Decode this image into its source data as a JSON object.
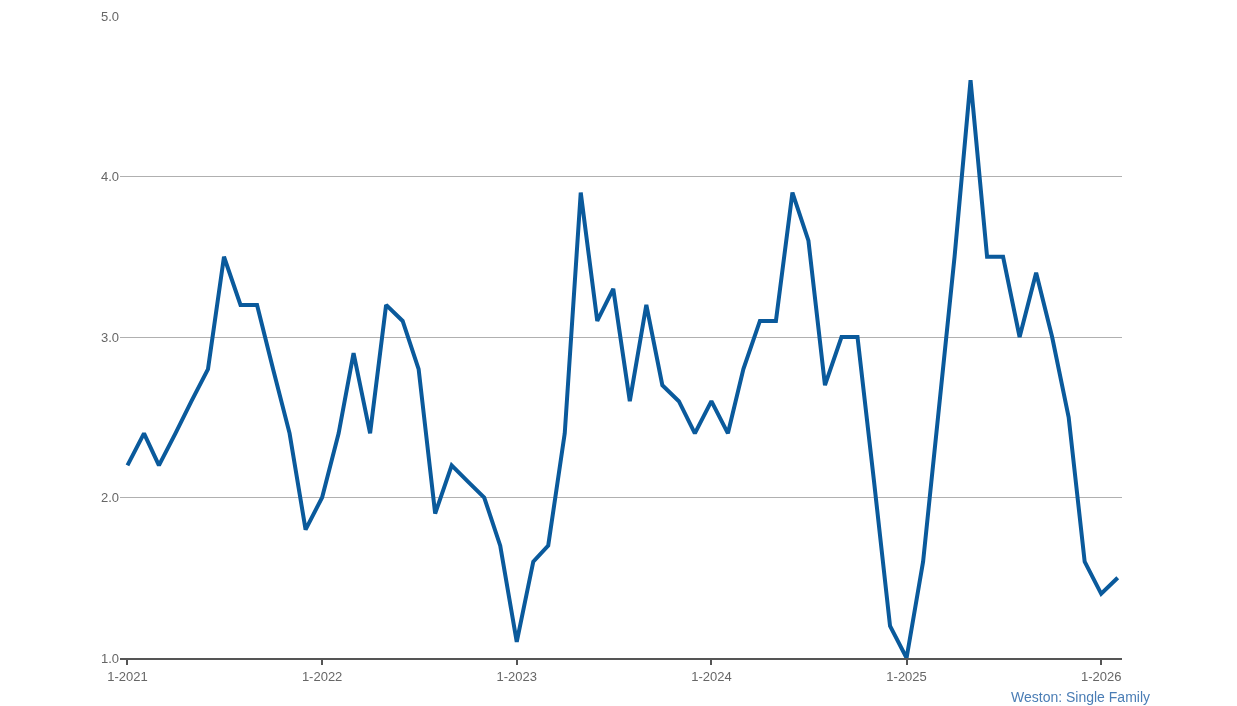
{
  "chart_data": {
    "type": "line",
    "x": [
      "2021-01",
      "2021-02",
      "2021-03",
      "2021-04",
      "2021-05",
      "2021-06",
      "2021-07",
      "2021-08",
      "2021-09",
      "2021-10",
      "2021-11",
      "2021-12",
      "2022-01",
      "2022-02",
      "2022-03",
      "2022-04",
      "2022-05",
      "2022-06",
      "2022-07",
      "2022-08",
      "2022-09",
      "2022-10",
      "2022-11",
      "2022-12",
      "2023-01",
      "2023-02",
      "2023-03",
      "2023-04",
      "2023-05",
      "2023-06",
      "2023-07",
      "2023-08",
      "2023-09",
      "2023-10",
      "2023-11",
      "2023-12",
      "2024-01",
      "2024-02",
      "2024-03",
      "2024-04",
      "2024-05",
      "2024-06",
      "2024-07",
      "2024-08",
      "2024-09",
      "2024-10",
      "2024-11",
      "2024-12",
      "2025-01",
      "2025-02",
      "2025-03",
      "2025-04",
      "2025-05",
      "2025-06",
      "2025-07",
      "2025-08",
      "2025-09",
      "2025-10",
      "2025-11",
      "2025-12",
      "2026-01",
      "2026-02"
    ],
    "series": [
      {
        "color": "#0a5a9c",
        "values": [
          2.2,
          2.4,
          2.2,
          2.4,
          2.6,
          2.8,
          3.5,
          3.2,
          3.2,
          2.8,
          2.4,
          1.8,
          2.0,
          2.4,
          2.9,
          2.4,
          3.2,
          3.1,
          2.8,
          1.9,
          2.2,
          2.1,
          2.0,
          1.7,
          1.1,
          1.6,
          1.7,
          2.4,
          3.9,
          3.1,
          3.3,
          2.6,
          3.2,
          2.7,
          2.6,
          2.4,
          2.6,
          2.4,
          2.8,
          3.1,
          3.1,
          3.9,
          3.6,
          2.7,
          3.0,
          3.0,
          2.1,
          1.2,
          1.0,
          1.6,
          2.5,
          3.5,
          4.6,
          3.5,
          3.5,
          3.0,
          3.4,
          3.0,
          2.5,
          1.6,
          1.4,
          1.5
        ]
      }
    ],
    "xlim": [
      "2020-12-18",
      "2026-02-09"
    ],
    "xticks": [
      {
        "value": "2021-01",
        "label": "1-2021"
      },
      {
        "value": "2022-01",
        "label": "1-2022"
      },
      {
        "value": "2023-01",
        "label": "1-2023"
      },
      {
        "value": "2024-01",
        "label": "1-2024"
      },
      {
        "value": "2025-01",
        "label": "1-2025"
      },
      {
        "value": "2026-01",
        "label": "1-2026"
      }
    ],
    "ylim": [
      1,
      5
    ],
    "yticks": [
      {
        "value": 1,
        "label": "1.0"
      },
      {
        "value": 2,
        "label": "2.0"
      },
      {
        "value": 3,
        "label": "3.0"
      },
      {
        "value": 4,
        "label": "4.0"
      },
      {
        "value": 5,
        "label": "5.0"
      }
    ],
    "grid": "y",
    "marker": "none",
    "line_style": "solid",
    "annotations": [
      "Weston: Single Family"
    ]
  }
}
